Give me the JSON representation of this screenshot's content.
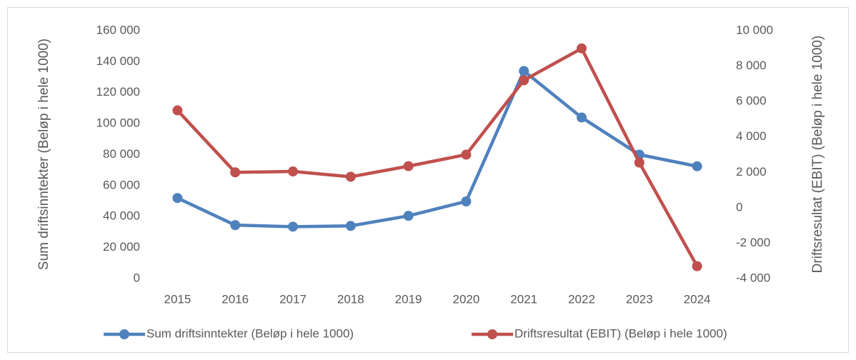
{
  "chart_data": {
    "type": "line",
    "y_label": "Sum driftsinntekter (Beløp i hele 1000)",
    "y2_label": "Driftsresultat (EBIT) (Beløp i hele 1000)",
    "categories": [
      "2015",
      "2016",
      "2017",
      "2018",
      "2019",
      "2020",
      "2021",
      "2022",
      "2023",
      "2024"
    ],
    "series": [
      {
        "name": "Sum driftsinntekter (Beløp i hele 1000)",
        "color": "#4f81bd",
        "axis": "y",
        "values": [
          52000,
          34500,
          33500,
          34000,
          40500,
          49800,
          134000,
          104000,
          80000,
          72500
        ]
      },
      {
        "name": "Driftsresultat (EBIT) (Beløp i hele 1000)",
        "color": "#c0504d",
        "axis": "y2",
        "values": [
          5500,
          2000,
          2050,
          1750,
          2350,
          3000,
          7200,
          9000,
          2550,
          -3300
        ]
      }
    ],
    "ylim": [
      0,
      160000
    ],
    "yticks": [
      0,
      {
        "value": 20000,
        "label": "20 000"
      },
      {
        "value": 40000,
        "label": "40 000"
      },
      {
        "value": 60000,
        "label": "60 000"
      },
      {
        "value": 80000,
        "label": "80 000"
      },
      {
        "value": 100000,
        "label": "100 000"
      },
      {
        "value": 120000,
        "label": "120 000"
      },
      {
        "value": 140000,
        "label": "140 000"
      },
      {
        "value": 160000,
        "label": "160 000"
      }
    ],
    "y2lim": [
      -4000,
      10000
    ],
    "y2ticks": [
      {
        "value": -4000,
        "label": "-4 000"
      },
      {
        "value": -2000,
        "label": "-2 000"
      },
      0,
      {
        "value": 2000,
        "label": "2 000"
      },
      {
        "value": 4000,
        "label": "4 000"
      },
      {
        "value": 6000,
        "label": "6 000"
      },
      {
        "value": 8000,
        "label": "8 000"
      },
      {
        "value": 10000,
        "label": "10 000"
      }
    ],
    "grid": false,
    "legend": "bottom"
  }
}
